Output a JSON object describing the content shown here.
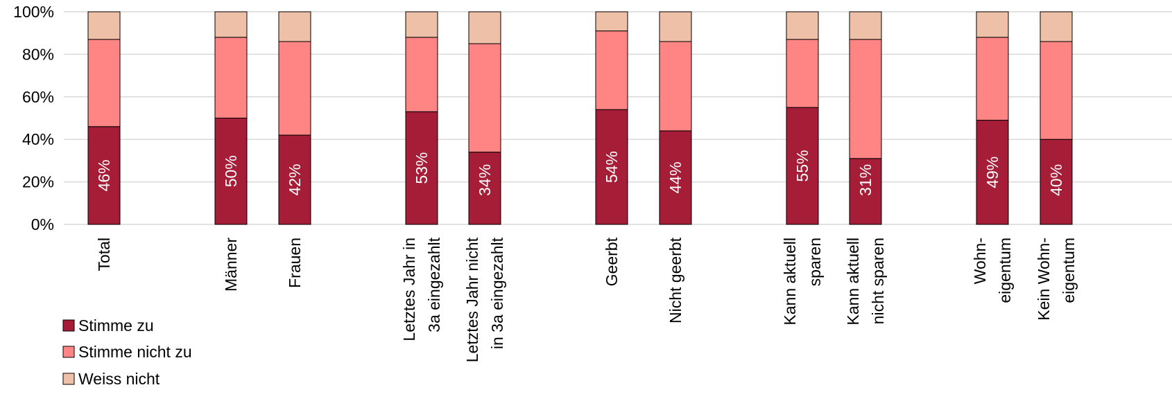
{
  "chart_data": {
    "type": "bar",
    "stacked": true,
    "normalized": true,
    "categories": [
      "Total",
      "Männer",
      "Frauen",
      "Letztes Jahr in 3a eingezahlt",
      "Letztes Jahr nicht in 3a eingezahlt",
      "Geerbt",
      "Nicht geerbt",
      "Kann aktuell sparen",
      "Kann aktuell nicht sparen",
      "Wohn-eigentum",
      "Kein Wohn-eigentum"
    ],
    "category_lines": [
      [
        "Total"
      ],
      [
        "Männer"
      ],
      [
        "Frauen"
      ],
      [
        "Letztes Jahr in",
        "3a eingezahlt"
      ],
      [
        "Letztes Jahr nicht",
        "in 3a eingezahlt"
      ],
      [
        "Geerbt"
      ],
      [
        "Nicht geerbt"
      ],
      [
        "Kann aktuell",
        "sparen"
      ],
      [
        "Kann aktuell",
        "nicht sparen"
      ],
      [
        "Wohn-",
        "eigentum"
      ],
      [
        "Kein Wohn-",
        "eigentum"
      ]
    ],
    "series": [
      {
        "name": "Stimme zu",
        "color": "#A51D37",
        "values": [
          46,
          50,
          42,
          53,
          34,
          54,
          44,
          55,
          31,
          49,
          40
        ]
      },
      {
        "name": "Stimme nicht zu",
        "color": "#FF8585",
        "values": [
          41,
          38,
          44,
          35,
          51,
          37,
          42,
          32,
          56,
          39,
          46
        ]
      },
      {
        "name": "Weiss nicht",
        "color": "#EEC0A8",
        "values": [
          13,
          12,
          14,
          12,
          15,
          9,
          14,
          13,
          13,
          12,
          14
        ]
      }
    ],
    "data_labels": [
      "46%",
      "50%",
      "42%",
      "53%",
      "34%",
      "54%",
      "44%",
      "55%",
      "31%",
      "49%",
      "40%"
    ],
    "y_ticks": [
      "0%",
      "20%",
      "40%",
      "60%",
      "80%",
      "100%"
    ],
    "ylim": [
      0,
      100
    ],
    "grid": true,
    "legend_position": "bottom-left"
  }
}
